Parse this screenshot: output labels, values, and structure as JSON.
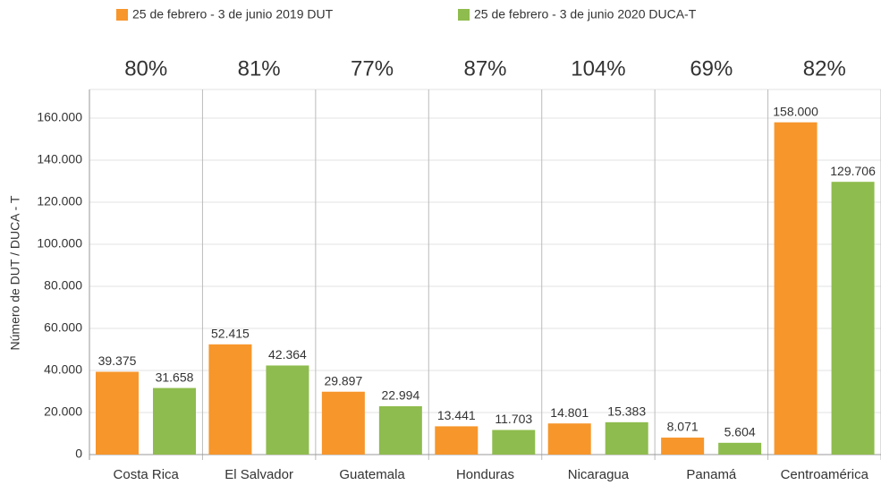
{
  "chart_data": {
    "type": "bar",
    "y_label": "Número de DUT / DUCA - T",
    "categories": [
      "Costa Rica",
      "El Salvador",
      "Guatemala",
      "Honduras",
      "Nicaragua",
      "Panamá",
      "Centroamérica"
    ],
    "annotations": [
      "80%",
      "81%",
      "77%",
      "87%",
      "104%",
      "69%",
      "82%"
    ],
    "series": [
      {
        "name": "25 de febrero - 3 de junio 2019 DUT",
        "color": "#f7962b",
        "values": [
          39375,
          52415,
          29897,
          13441,
          14801,
          8071,
          158000
        ],
        "value_labels": [
          "39.375",
          "52.415",
          "29.897",
          "13.441",
          "14.801",
          "8.071",
          "158.000"
        ]
      },
      {
        "name": "25 de febrero - 3 de junio 2020 DUCA-T",
        "color": "#8fbc4e",
        "values": [
          31658,
          42364,
          22994,
          11703,
          15383,
          5604,
          129706
        ],
        "value_labels": [
          "31.658",
          "42.364",
          "22.994",
          "11.703",
          "15.383",
          "5.604",
          "129.706"
        ]
      }
    ],
    "ylim": [
      0,
      160000
    ],
    "yticks": [
      0,
      {
        "value": 20000,
        "label": "20.000"
      },
      {
        "value": 40000,
        "label": "40.000"
      },
      {
        "value": 60000,
        "label": "60.000"
      },
      {
        "value": 80000,
        "label": "80.000"
      },
      {
        "value": 100000,
        "label": "100.000"
      },
      {
        "value": 120000,
        "label": "120.000"
      },
      {
        "value": 140000,
        "label": "140.000"
      },
      {
        "value": 160000,
        "label": "160.000"
      }
    ],
    "grid": true
  }
}
